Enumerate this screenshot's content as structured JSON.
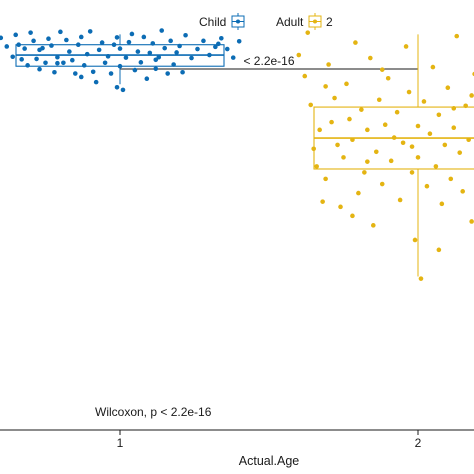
{
  "chart_data": {
    "type": "box-jitter",
    "xlabel": "Actual.Age",
    "categories": [
      "1",
      "2"
    ],
    "ylim": [
      0,
      100
    ],
    "grid": false,
    "legend_position": "top",
    "legend": [
      {
        "label": "Child",
        "color": "#0c6cb4",
        "key_label": ""
      },
      {
        "label": "Adult",
        "color": "#e4b412",
        "key_label": "2"
      }
    ],
    "comparison": {
      "label": "< 2.2e-16",
      "from": "1",
      "to": "2"
    },
    "global_test": "Wilcoxon, p < 2.2e-16",
    "groups": [
      {
        "name": "Child",
        "category": "1",
        "color": "#0c6cb4",
        "box": {
          "q1": 84.6,
          "median": 87.2,
          "q3": 89.6,
          "whisker_low": 80.4,
          "whisker_high": 92.0
        },
        "points": [
          [
            0.6,
            91.2
          ],
          [
            0.62,
            89.2
          ],
          [
            0.64,
            86.8
          ],
          [
            0.65,
            91.9
          ],
          [
            0.66,
            89.6
          ],
          [
            0.67,
            86.2
          ],
          [
            0.68,
            88.7
          ],
          [
            0.69,
            84.8
          ],
          [
            0.7,
            92.4
          ],
          [
            0.71,
            90.5
          ],
          [
            0.72,
            86.3
          ],
          [
            0.73,
            83.9
          ],
          [
            0.74,
            88.8
          ],
          [
            0.75,
            85.4
          ],
          [
            0.76,
            91.0
          ],
          [
            0.77,
            89.4
          ],
          [
            0.78,
            83.2
          ],
          [
            0.79,
            86.7
          ],
          [
            0.8,
            92.6
          ],
          [
            0.81,
            85.4
          ],
          [
            0.82,
            90.7
          ],
          [
            0.83,
            88.0
          ],
          [
            0.84,
            86.0
          ],
          [
            0.85,
            82.9
          ],
          [
            0.86,
            89.6
          ],
          [
            0.87,
            91.4
          ],
          [
            0.88,
            84.8
          ],
          [
            0.89,
            87.4
          ],
          [
            0.9,
            92.7
          ],
          [
            0.91,
            83.3
          ],
          [
            0.92,
            80.9
          ],
          [
            0.93,
            88.4
          ],
          [
            0.94,
            90.1
          ],
          [
            0.95,
            85.4
          ],
          [
            0.96,
            86.9
          ],
          [
            0.97,
            82.9
          ],
          [
            0.98,
            89.6
          ],
          [
            0.99,
            91.3
          ],
          [
            1.0,
            88.7
          ],
          [
            1.0,
            84.6
          ],
          [
            1.01,
            79.1
          ],
          [
            1.02,
            86.6
          ],
          [
            1.03,
            90.2
          ],
          [
            1.04,
            92.1
          ],
          [
            1.05,
            83.7
          ],
          [
            1.06,
            88.0
          ],
          [
            1.07,
            85.5
          ],
          [
            1.08,
            91.4
          ],
          [
            1.09,
            81.7
          ],
          [
            1.1,
            87.7
          ],
          [
            1.11,
            89.9
          ],
          [
            1.12,
            84.0
          ],
          [
            1.13,
            86.7
          ],
          [
            1.14,
            92.9
          ],
          [
            1.15,
            88.8
          ],
          [
            1.16,
            82.9
          ],
          [
            1.17,
            90.5
          ],
          [
            1.18,
            85.0
          ],
          [
            1.19,
            87.8
          ],
          [
            1.2,
            89.3
          ],
          [
            1.21,
            83.2
          ],
          [
            1.22,
            91.8
          ],
          [
            1.24,
            86.5
          ],
          [
            1.26,
            88.6
          ],
          [
            1.28,
            90.5
          ],
          [
            1.3,
            87.2
          ],
          [
            1.32,
            89.1
          ],
          [
            1.34,
            91.1
          ],
          [
            1.36,
            88.6
          ],
          [
            1.38,
            86.6
          ],
          [
            1.4,
            90.4
          ],
          [
            0.99,
            79.7
          ],
          [
            0.79,
            85.3
          ],
          [
            0.87,
            82.1
          ],
          [
            1.12,
            86.1
          ],
          [
            0.73,
            88.4
          ],
          [
            1.33,
            89.8
          ]
        ]
      },
      {
        "name": "Adult",
        "category": "2",
        "color": "#e4b412",
        "box": {
          "q1": 60.7,
          "median": 67.9,
          "q3": 75.1,
          "whisker_low": 35.7,
          "whisker_high": 92.0
        },
        "points": [
          [
            1.6,
            87.2
          ],
          [
            1.62,
            82.3
          ],
          [
            1.64,
            75.6
          ],
          [
            1.65,
            65.4
          ],
          [
            1.66,
            61.3
          ],
          [
            1.67,
            69.8
          ],
          [
            1.68,
            53.1
          ],
          [
            1.69,
            58.4
          ],
          [
            1.7,
            85.0
          ],
          [
            1.71,
            71.6
          ],
          [
            1.72,
            77.2
          ],
          [
            1.73,
            66.3
          ],
          [
            1.74,
            51.9
          ],
          [
            1.75,
            63.4
          ],
          [
            1.76,
            80.5
          ],
          [
            1.77,
            72.3
          ],
          [
            1.78,
            67.5
          ],
          [
            1.79,
            90.1
          ],
          [
            1.8,
            55.1
          ],
          [
            1.81,
            74.5
          ],
          [
            1.82,
            59.9
          ],
          [
            1.83,
            69.8
          ],
          [
            1.84,
            86.5
          ],
          [
            1.85,
            47.6
          ],
          [
            1.86,
            64.7
          ],
          [
            1.87,
            76.8
          ],
          [
            1.88,
            57.2
          ],
          [
            1.89,
            71.0
          ],
          [
            1.9,
            81.8
          ],
          [
            1.91,
            62.6
          ],
          [
            1.92,
            68.0
          ],
          [
            1.93,
            73.9
          ],
          [
            1.94,
            53.5
          ],
          [
            1.95,
            66.8
          ],
          [
            1.96,
            89.2
          ],
          [
            1.97,
            78.6
          ],
          [
            1.98,
            59.9
          ],
          [
            1.99,
            44.2
          ],
          [
            2.0,
            70.7
          ],
          [
            2.0,
            63.4
          ],
          [
            2.01,
            35.2
          ],
          [
            2.02,
            76.4
          ],
          [
            2.03,
            56.7
          ],
          [
            2.04,
            68.9
          ],
          [
            2.05,
            84.4
          ],
          [
            2.06,
            61.3
          ],
          [
            2.07,
            73.3
          ],
          [
            2.08,
            52.6
          ],
          [
            2.09,
            66.3
          ],
          [
            2.1,
            79.6
          ],
          [
            2.11,
            58.4
          ],
          [
            2.12,
            70.3
          ],
          [
            2.13,
            91.6
          ],
          [
            2.14,
            64.5
          ],
          [
            2.15,
            55.5
          ],
          [
            2.16,
            75.4
          ],
          [
            2.17,
            67.5
          ],
          [
            2.18,
            48.5
          ],
          [
            2.19,
            82.8
          ],
          [
            2.2,
            61.9
          ],
          [
            2.21,
            72.1
          ],
          [
            2.22,
            57.6
          ],
          [
            2.23,
            69.0
          ],
          [
            2.24,
            86.6
          ],
          [
            2.25,
            63.8
          ],
          [
            2.26,
            77.4
          ],
          [
            2.27,
            51.8
          ],
          [
            2.28,
            66.6
          ],
          [
            2.29,
            73.6
          ],
          [
            2.3,
            60.1
          ],
          [
            2.31,
            88.6
          ],
          [
            2.32,
            69.4
          ],
          [
            2.33,
            56.3
          ],
          [
            2.34,
            80.7
          ],
          [
            2.35,
            64.1
          ],
          [
            2.36,
            71.9
          ],
          [
            2.38,
            53.9
          ],
          [
            2.4,
            67.6
          ],
          [
            1.63,
            92.4
          ],
          [
            1.78,
            49.8
          ],
          [
            1.88,
            83.8
          ],
          [
            1.98,
            65.9
          ],
          [
            2.07,
            41.9
          ],
          [
            2.18,
            77.8
          ],
          [
            2.27,
            88.8
          ],
          [
            2.37,
            59.5
          ],
          [
            1.69,
            79.9
          ],
          [
            2.21,
            85.6
          ],
          [
            1.83,
            62.4
          ],
          [
            2.12,
            74.8
          ]
        ]
      }
    ]
  }
}
